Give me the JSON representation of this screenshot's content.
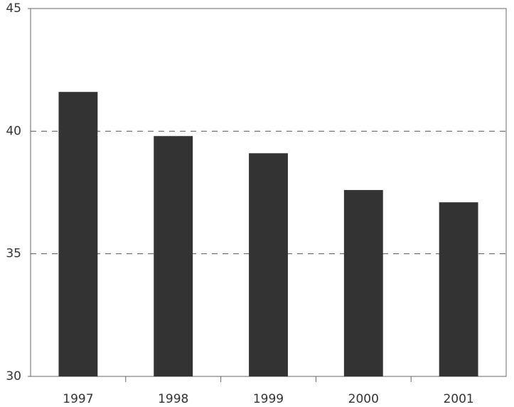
{
  "chart_data": {
    "type": "bar",
    "categories": [
      "1997",
      "1998",
      "1999",
      "2000",
      "2001"
    ],
    "values": [
      41.6,
      39.8,
      39.1,
      37.6,
      37.1
    ],
    "color": "#333333",
    "ylim": [
      30,
      45
    ],
    "yticks": [
      30,
      35,
      40,
      45
    ],
    "grid": true
  }
}
